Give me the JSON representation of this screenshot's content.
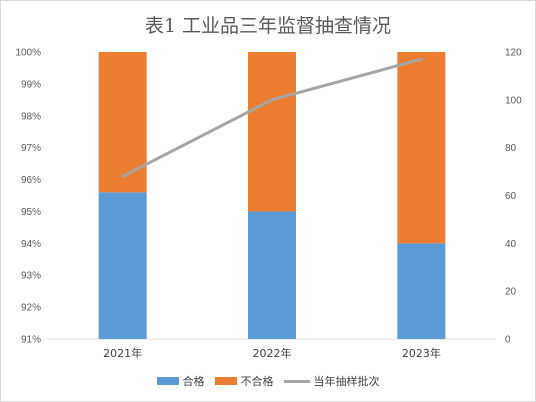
{
  "chart_data": {
    "type": "bar",
    "title": "表1 工业品三年监督抽查情况",
    "categories": [
      "2021年",
      "2022年",
      "2023年"
    ],
    "series": [
      {
        "name": "合格",
        "kind": "stacked-bar",
        "axis": "left",
        "color": "#5b9bd5",
        "values": [
          95.6,
          95.0,
          94.0
        ]
      },
      {
        "name": "不合格",
        "kind": "stacked-bar",
        "axis": "left",
        "color": "#ed7d31",
        "values": [
          4.4,
          5.0,
          6.0
        ]
      },
      {
        "name": "当年抽样批次",
        "kind": "line",
        "axis": "right",
        "color": "#a5a5a5",
        "values": [
          68,
          100,
          117
        ]
      }
    ],
    "left_axis": {
      "range": [
        91,
        100
      ],
      "ticks": [
        "91%",
        "92%",
        "93%",
        "94%",
        "95%",
        "96%",
        "97%",
        "98%",
        "99%",
        "100%"
      ]
    },
    "right_axis": {
      "range": [
        0,
        120
      ],
      "ticks": [
        "0",
        "20",
        "40",
        "60",
        "80",
        "100",
        "120"
      ]
    },
    "grid": false,
    "legend_position": "bottom"
  }
}
